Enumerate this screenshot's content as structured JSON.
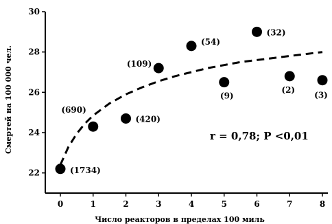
{
  "chart_data": {
    "type": "scatter",
    "title": "",
    "xlabel": "Число реакторов в пределах 100 миль",
    "ylabel": "Смертей на 100 000 чел.",
    "xlim": [
      0,
      8
    ],
    "ylim": [
      21,
      30
    ],
    "x_ticks": [
      0,
      1,
      2,
      3,
      4,
      5,
      6,
      7,
      8
    ],
    "y_ticks": [
      22,
      24,
      26,
      28,
      30
    ],
    "grid": false,
    "legend": "none",
    "points": [
      {
        "x": 0,
        "y": 22.2,
        "label": "(1734)"
      },
      {
        "x": 1,
        "y": 24.3,
        "label": "(690)"
      },
      {
        "x": 2,
        "y": 24.7,
        "label": "(420)"
      },
      {
        "x": 3,
        "y": 27.2,
        "label": "(109)"
      },
      {
        "x": 4,
        "y": 28.3,
        "label": "(54)"
      },
      {
        "x": 5,
        "y": 26.5,
        "label": "(9)"
      },
      {
        "x": 6,
        "y": 29.0,
        "label": "(32)"
      },
      {
        "x": 7,
        "y": 26.8,
        "label": "(2)"
      },
      {
        "x": 8,
        "y": 26.6,
        "label": "(3)"
      }
    ],
    "trend_line": {
      "style": "dashed",
      "x": [
        0,
        0.25,
        0.5,
        0.75,
        1,
        1.5,
        2,
        2.5,
        3,
        3.5,
        4,
        4.5,
        5,
        5.5,
        6,
        6.5,
        7,
        7.5,
        8
      ],
      "y": [
        22.4,
        23.3,
        23.95,
        24.45,
        24.85,
        25.45,
        25.9,
        26.25,
        26.55,
        26.8,
        27.0,
        27.2,
        27.35,
        27.5,
        27.6,
        27.7,
        27.8,
        27.9,
        28.0
      ]
    },
    "annotation": "r = 0,78; P <0,01"
  },
  "colors": {
    "marks": "#000000",
    "background": "#ffffff"
  }
}
